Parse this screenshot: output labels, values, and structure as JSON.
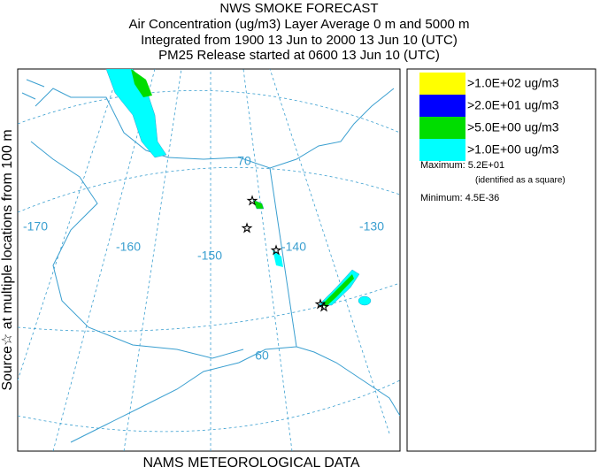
{
  "header": {
    "title": "NWS SMOKE FORECAST",
    "lines": [
      "Air Concentration (ug/m3) Layer Average    0 m and  5000 m",
      "Integrated from 1900 13 Jun to 2000 13 Jun 10 (UTC)",
      "PM25 Release started at 0600 13 Jun 10 (UTC)"
    ]
  },
  "side_label": "Source☆ at multiple locations   from   100 m",
  "footer": "NAMS METEOROLOGICAL DATA",
  "map": {
    "labels": [
      "-170",
      "-160",
      "-150",
      "-140",
      "-130",
      "70",
      "60"
    ]
  },
  "legend": {
    "items": [
      {
        "label": ">1.0E+02 ug/m3",
        "color": "#ffff00"
      },
      {
        "label": ">2.0E+01 ug/m3",
        "color": "#0000ff"
      },
      {
        "label": ">5.0E+00 ug/m3",
        "color": "#00dd00"
      },
      {
        "label": ">1.0E+00 ug/m3",
        "color": "#00ffff"
      }
    ],
    "maximum": "Maximum: 5.2E+01",
    "maximum_note": "(identified as a square)",
    "minimum": "Minimum: 4.5E-36"
  }
}
